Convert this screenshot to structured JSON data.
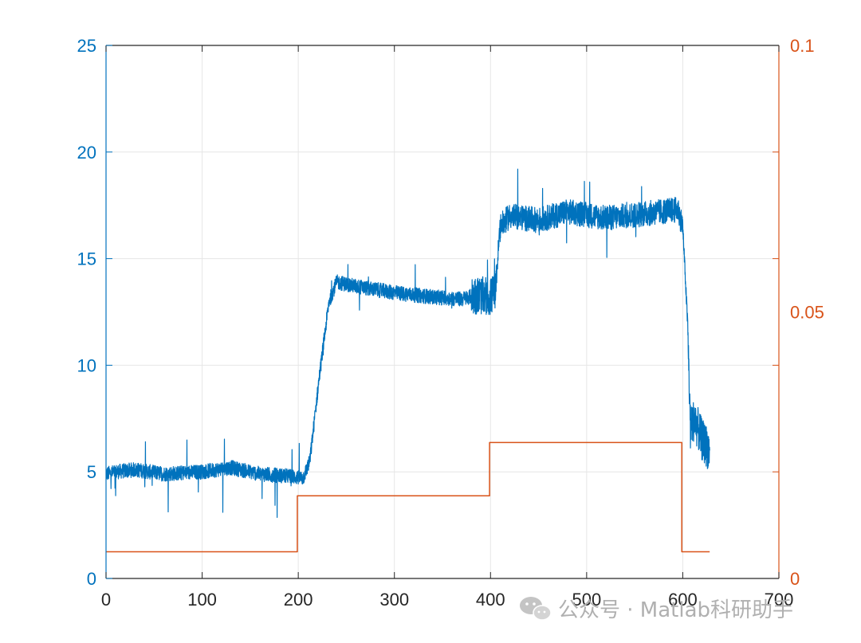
{
  "chart_data": {
    "type": "line",
    "title": "",
    "xlabel": "",
    "ylabel": "",
    "xlim": [
      0,
      700
    ],
    "xticks": [
      0,
      100,
      200,
      300,
      400,
      500,
      600,
      700
    ],
    "grid": true,
    "y_left": {
      "lim": [
        0,
        25
      ],
      "ticks": [
        0,
        5,
        10,
        15,
        20,
        25
      ],
      "tick_labels": [
        "0",
        "5",
        "10",
        "15",
        "20",
        "25"
      ],
      "color": "#0072BD"
    },
    "y_right": {
      "lim": [
        0,
        0.1
      ],
      "ticks": [
        0,
        0.05,
        0.1
      ],
      "tick_labels": [
        "0",
        "0.05",
        "0.1"
      ],
      "color": "#D95319"
    },
    "series": [
      {
        "axis": "left",
        "color": "#0072BD",
        "noise": true,
        "x": [
          0,
          10,
          30,
          60,
          100,
          130,
          160,
          190,
          205,
          212,
          222,
          232,
          240,
          260,
          300,
          340,
          370,
          385,
          400,
          405,
          410,
          420,
          450,
          480,
          520,
          560,
          595,
          600,
          605,
          608,
          612,
          620,
          628
        ],
        "y": [
          4.9,
          5.0,
          5.1,
          4.9,
          5.0,
          5.2,
          4.9,
          4.8,
          4.7,
          5.5,
          9.5,
          13.0,
          13.9,
          13.7,
          13.4,
          13.2,
          13.1,
          13.3,
          13.2,
          13.5,
          16.5,
          17.0,
          16.8,
          17.2,
          16.9,
          17.1,
          17.3,
          16.5,
          12.0,
          7.0,
          7.5,
          6.5,
          6.0
        ]
      },
      {
        "axis": "right",
        "color": "#D95319",
        "step": true,
        "x": [
          0,
          199,
          199,
          399,
          399,
          599,
          599,
          628
        ],
        "y": [
          0.005,
          0.005,
          0.0155,
          0.0155,
          0.0255,
          0.0255,
          0.005,
          0.005
        ]
      }
    ]
  },
  "watermark": {
    "icon": "wechat-icon",
    "text": "公众号 · Matlab科研助手"
  }
}
